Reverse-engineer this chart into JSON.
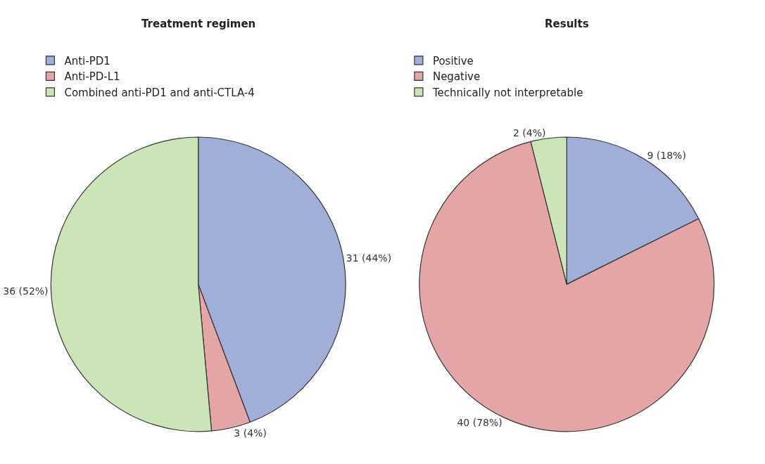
{
  "chart_data": [
    {
      "type": "pie",
      "title": "Treatment regimen",
      "categories": [
        "Anti-PD1",
        "Anti-PD-L1",
        "Combined anti-PD1 and anti-CTLA-4"
      ],
      "values": [
        31,
        3,
        36
      ],
      "colors": [
        "#a0aed8",
        "#e3a5a5",
        "#cce5b8"
      ],
      "value_labels": [
        "31 (44%)",
        "3 (4%)",
        "36 (52%)"
      ],
      "legend": "top left"
    },
    {
      "type": "pie",
      "title": "Results",
      "categories": [
        "Positive",
        "Negative",
        "Technically not interpretable"
      ],
      "values": [
        9,
        40,
        2
      ],
      "colors": [
        "#a0aed8",
        "#e3a5a5",
        "#cce5b8"
      ],
      "value_labels": [
        "9 (18%)",
        "40 (78%)",
        "2 (4%)"
      ],
      "legend": "top left"
    }
  ]
}
